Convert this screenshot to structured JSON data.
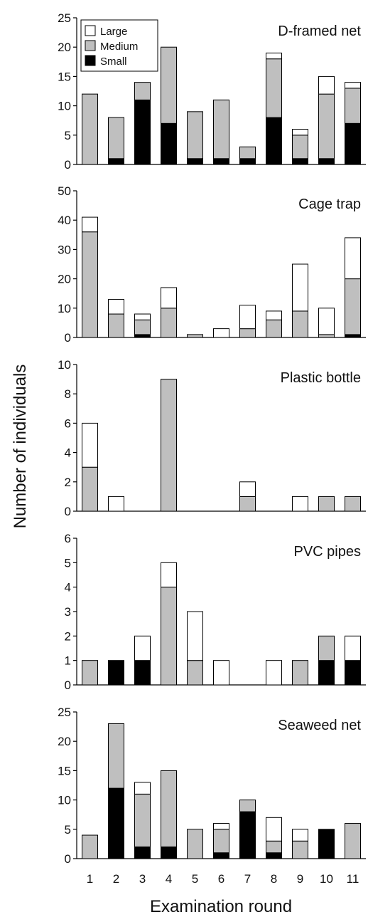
{
  "chart_data": {
    "type": "bar",
    "stacked": true,
    "categories": [
      "1",
      "2",
      "3",
      "4",
      "5",
      "6",
      "7",
      "8",
      "9",
      "10",
      "11"
    ],
    "xlabel": "Examination round",
    "ylabel": "Number of individuals",
    "legend": {
      "placement": "top-left of first panel",
      "entries": [
        "Large",
        "Medium",
        "Small"
      ]
    },
    "colors": {
      "Small": "#000000",
      "Medium": "#bfbfbf",
      "Large": "#ffffff",
      "edge": "#000000"
    },
    "stack_order": [
      "Small",
      "Medium",
      "Large"
    ],
    "panels": [
      {
        "title": "D-framed net",
        "ylim": [
          0,
          25
        ],
        "yticks": [
          0,
          5,
          10,
          15,
          20,
          25
        ],
        "series": [
          {
            "name": "Small",
            "values": [
              0,
              1,
              11,
              7,
              1,
              1,
              1,
              8,
              1,
              1,
              7
            ]
          },
          {
            "name": "Medium",
            "values": [
              12,
              7,
              3,
              13,
              8,
              10,
              2,
              10,
              4,
              11,
              6
            ]
          },
          {
            "name": "Large",
            "values": [
              0,
              0,
              0,
              0,
              0,
              0,
              0,
              1,
              1,
              3,
              1
            ]
          }
        ]
      },
      {
        "title": "Cage trap",
        "ylim": [
          0,
          50
        ],
        "yticks": [
          0,
          10,
          20,
          30,
          40,
          50
        ],
        "series": [
          {
            "name": "Small",
            "values": [
              0,
              0,
              1,
              0,
              0,
              0,
              0,
              0,
              0,
              0,
              1
            ]
          },
          {
            "name": "Medium",
            "values": [
              36,
              8,
              5,
              10,
              1,
              0,
              3,
              6,
              9,
              1,
              19
            ]
          },
          {
            "name": "Large",
            "values": [
              5,
              5,
              2,
              7,
              0,
              3,
              8,
              3,
              16,
              9,
              14
            ]
          }
        ]
      },
      {
        "title": "Plastic bottle",
        "ylim": [
          0,
          10
        ],
        "yticks": [
          0,
          2,
          4,
          6,
          8,
          10
        ],
        "series": [
          {
            "name": "Small",
            "values": [
              0,
              0,
              0,
              0,
              0,
              0,
              0,
              0,
              0,
              0,
              0
            ]
          },
          {
            "name": "Medium",
            "values": [
              3,
              0,
              0,
              9,
              0,
              0,
              1,
              0,
              0,
              1,
              1
            ]
          },
          {
            "name": "Large",
            "values": [
              3,
              1,
              0,
              0,
              0,
              0,
              1,
              0,
              1,
              0,
              0
            ]
          }
        ]
      },
      {
        "title": "PVC pipes",
        "ylim": [
          0,
          6
        ],
        "yticks": [
          0,
          1,
          2,
          3,
          4,
          5,
          6
        ],
        "series": [
          {
            "name": "Small",
            "values": [
              0,
              1,
              1,
              0,
              0,
              0,
              0,
              0,
              0,
              1,
              1
            ]
          },
          {
            "name": "Medium",
            "values": [
              1,
              0,
              0,
              4,
              1,
              0,
              0,
              0,
              1,
              1,
              0
            ]
          },
          {
            "name": "Large",
            "values": [
              0,
              0,
              1,
              1,
              2,
              1,
              0,
              1,
              0,
              0,
              1
            ]
          }
        ]
      },
      {
        "title": "Seaweed net",
        "ylim": [
          0,
          25
        ],
        "yticks": [
          0,
          5,
          10,
          15,
          20,
          25
        ],
        "series": [
          {
            "name": "Small",
            "values": [
              0,
              12,
              2,
              2,
              0,
              1,
              8,
              1,
              0,
              5,
              0
            ]
          },
          {
            "name": "Medium",
            "values": [
              4,
              11,
              9,
              13,
              5,
              4,
              2,
              2,
              3,
              0,
              6
            ]
          },
          {
            "name": "Large",
            "values": [
              0,
              0,
              2,
              0,
              0,
              1,
              0,
              4,
              2,
              0,
              0
            ]
          }
        ]
      }
    ]
  }
}
